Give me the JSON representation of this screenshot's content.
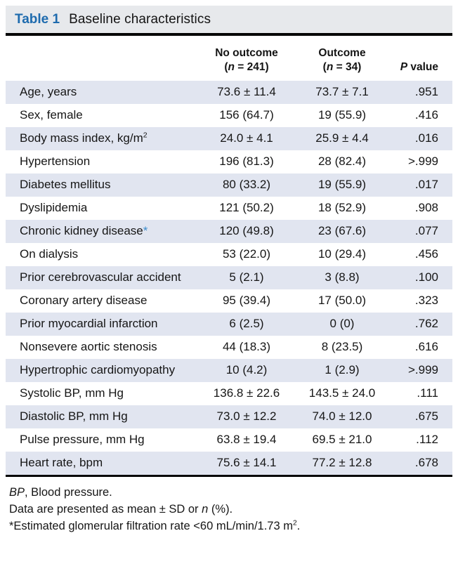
{
  "colors": {
    "accent_blue": "#1e6bae",
    "marker_blue": "#3e8ecd",
    "row_shade": "#e1e5f0",
    "titlebar_bg": "#e7e9ec",
    "rule_black": "#050505"
  },
  "table": {
    "label": "Table 1",
    "title": "Baseline characteristics",
    "header": {
      "col_no_outcome": {
        "line1": "No outcome",
        "line2": [
          {
            "t": "("
          },
          {
            "t": "n",
            "style": "italic"
          },
          {
            "t": " = 241)"
          }
        ]
      },
      "col_outcome": {
        "line1": "Outcome",
        "line2": [
          {
            "t": "("
          },
          {
            "t": "n",
            "style": "italic"
          },
          {
            "t": " = 34)"
          }
        ]
      },
      "col_p": [
        {
          "t": "P",
          "style": "italic"
        },
        {
          "t": " value"
        }
      ]
    },
    "rows": [
      {
        "label": [
          {
            "t": "Age, years"
          }
        ],
        "no_outcome": "73.6 ± 11.4",
        "outcome": "73.7 ± 7.1",
        "p": ".951"
      },
      {
        "label": [
          {
            "t": "Sex, female"
          }
        ],
        "no_outcome": "156 (64.7)",
        "outcome": "19 (55.9)",
        "p": ".416"
      },
      {
        "label": [
          {
            "t": "Body mass index, kg/m"
          },
          {
            "t": "2",
            "style": "sup"
          }
        ],
        "no_outcome": "24.0 ± 4.1",
        "outcome": "25.9 ± 4.4",
        "p": ".016"
      },
      {
        "label": [
          {
            "t": "Hypertension"
          }
        ],
        "no_outcome": "196 (81.3)",
        "outcome": "28 (82.4)",
        "p": ">.999"
      },
      {
        "label": [
          {
            "t": "Diabetes mellitus"
          }
        ],
        "no_outcome": "80 (33.2)",
        "outcome": "19 (55.9)",
        "p": ".017"
      },
      {
        "label": [
          {
            "t": "Dyslipidemia"
          }
        ],
        "no_outcome": "121 (50.2)",
        "outcome": "18 (52.9)",
        "p": ".908"
      },
      {
        "label": [
          {
            "t": "Chronic kidney disease"
          },
          {
            "t": "*",
            "style": "marker"
          }
        ],
        "no_outcome": "120 (49.8)",
        "outcome": "23 (67.6)",
        "p": ".077"
      },
      {
        "label": [
          {
            "t": "On dialysis"
          }
        ],
        "no_outcome": "53 (22.0)",
        "outcome": "10 (29.4)",
        "p": ".456"
      },
      {
        "label": [
          {
            "t": "Prior cerebrovascular accident"
          }
        ],
        "no_outcome": "5 (2.1)",
        "outcome": "3 (8.8)",
        "p": ".100"
      },
      {
        "label": [
          {
            "t": "Coronary artery disease"
          }
        ],
        "no_outcome": "95 (39.4)",
        "outcome": "17 (50.0)",
        "p": ".323"
      },
      {
        "label": [
          {
            "t": "Prior myocardial infarction"
          }
        ],
        "no_outcome": "6 (2.5)",
        "outcome": "0 (0)",
        "p": ".762"
      },
      {
        "label": [
          {
            "t": "Nonsevere aortic stenosis"
          }
        ],
        "no_outcome": "44 (18.3)",
        "outcome": "8 (23.5)",
        "p": ".616"
      },
      {
        "label": [
          {
            "t": "Hypertrophic cardiomyopathy"
          }
        ],
        "no_outcome": "10 (4.2)",
        "outcome": "1 (2.9)",
        "p": ">.999"
      },
      {
        "label": [
          {
            "t": "Systolic BP, mm Hg"
          }
        ],
        "no_outcome": "136.8 ± 22.6",
        "outcome": "143.5 ± 24.0",
        "p": ".111"
      },
      {
        "label": [
          {
            "t": "Diastolic BP, mm Hg"
          }
        ],
        "no_outcome": "73.0 ± 12.2",
        "outcome": "74.0 ± 12.0",
        "p": ".675"
      },
      {
        "label": [
          {
            "t": "Pulse pressure, mm Hg"
          }
        ],
        "no_outcome": "63.8 ± 19.4",
        "outcome": "69.5 ± 21.0",
        "p": ".112"
      },
      {
        "label": [
          {
            "t": "Heart rate, bpm"
          }
        ],
        "no_outcome": "75.6 ± 14.1",
        "outcome": "77.2 ± 12.8",
        "p": ".678"
      }
    ],
    "footnotes": [
      [
        {
          "t": "BP",
          "style": "italic"
        },
        {
          "t": ", Blood pressure."
        }
      ],
      [
        {
          "t": "Data are presented as mean ± SD or "
        },
        {
          "t": "n",
          "style": "italic"
        },
        {
          "t": " (%)."
        }
      ],
      [
        {
          "t": "*Estimated glomerular filtration rate <60 mL/min/1.73 m"
        },
        {
          "t": "2",
          "style": "sup"
        },
        {
          "t": "."
        }
      ]
    ]
  }
}
